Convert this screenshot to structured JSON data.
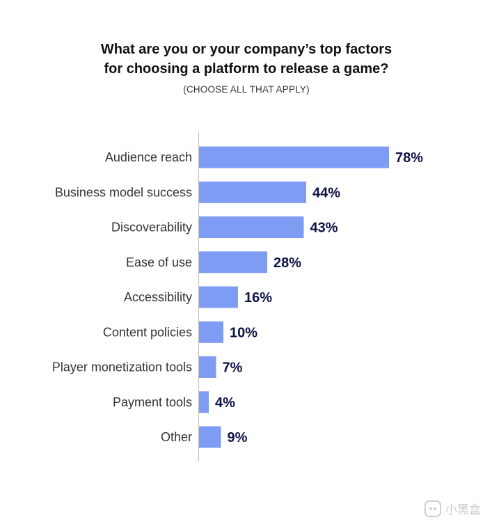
{
  "chart_data": {
    "type": "bar",
    "orientation": "horizontal",
    "title_lines": [
      "What are you or your company’s top factors",
      "for choosing a platform to release a game?"
    ],
    "subtitle": "(CHOOSE ALL THAT APPLY)",
    "categories": [
      "Audience reach",
      "Business model success",
      "Discoverability",
      "Ease of use",
      "Accessibility",
      "Content policies",
      "Player monetization tools",
      "Payment tools",
      "Other"
    ],
    "values": [
      78,
      44,
      43,
      28,
      16,
      10,
      7,
      4,
      9
    ],
    "value_labels": [
      "78%",
      "44%",
      "43%",
      "28%",
      "16%",
      "10%",
      "7%",
      "4%",
      "9%"
    ],
    "unit": "%",
    "xlim": [
      0,
      100
    ],
    "grid": false,
    "legend": "none",
    "bar_color": "#7f9cf5",
    "value_label_color": "#0f1447"
  },
  "watermark": {
    "text": "小黑盒",
    "icon": "game-controller-icon"
  }
}
